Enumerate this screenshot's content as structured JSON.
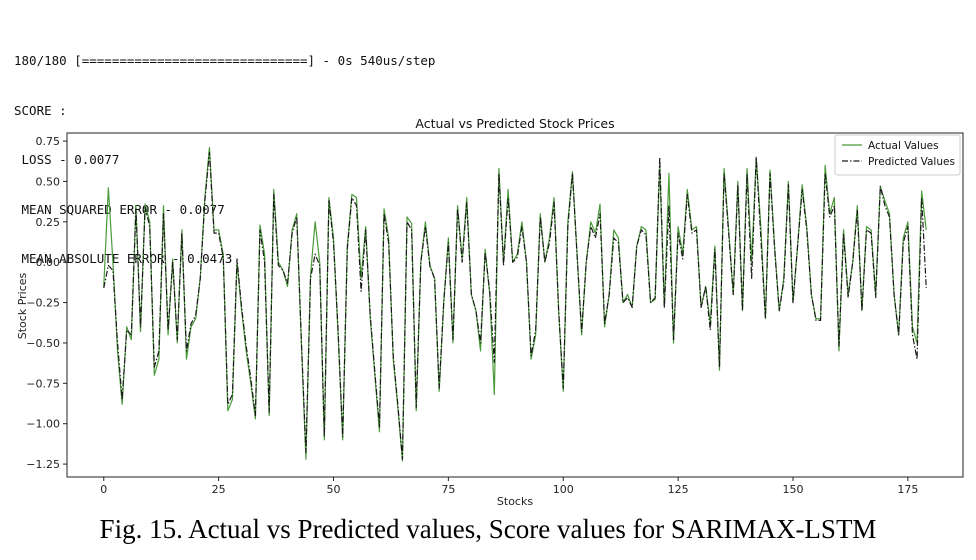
{
  "console": {
    "progress_line": "180/180 [==============================] - 0s 540us/step",
    "score_label": "SCORE :",
    "loss_line": " LOSS - 0.0077",
    "mse_line": " MEAN SQUARED ERROR - 0.0077",
    "mae_line": " MEAN ABSOLUTE ERROR - 0.0473"
  },
  "caption": "Fig. 15. Actual vs Predicted values, Score values for SARIMAX-LSTM",
  "chart_data": {
    "type": "line",
    "title": "Actual vs Predicted Stock Prices",
    "xlabel": "Stocks",
    "ylabel": "Stock Prices",
    "xlim": [
      -8,
      187
    ],
    "ylim": [
      -1.33,
      0.8
    ],
    "xticks": [
      0,
      25,
      50,
      75,
      100,
      125,
      150,
      175
    ],
    "xtick_labels": [
      "0",
      "25",
      "50",
      "75",
      "100",
      "125",
      "150",
      "175"
    ],
    "yticks": [
      0.75,
      0.5,
      0.25,
      0.0,
      -0.25,
      -0.5,
      -0.75,
      -1.0,
      -1.25
    ],
    "ytick_labels": [
      "0.75",
      "0.50",
      "0.25",
      "0.00",
      "−0.25",
      "−0.50",
      "−0.75",
      "−1.00",
      "−1.25"
    ],
    "grid": false,
    "legend_position": "top-right",
    "series": [
      {
        "name": "Actual Values",
        "color": "#4a9a3a",
        "style": "solid",
        "x": [
          0,
          1,
          2,
          3,
          4,
          5,
          6,
          7,
          8,
          9,
          10,
          11,
          12,
          13,
          14,
          15,
          16,
          17,
          18,
          19,
          20,
          21,
          22,
          23,
          24,
          25,
          26,
          27,
          28,
          29,
          30,
          31,
          32,
          33,
          34,
          35,
          36,
          37,
          38,
          39,
          40,
          41,
          42,
          43,
          44,
          45,
          46,
          47,
          48,
          49,
          50,
          51,
          52,
          53,
          54,
          55,
          56,
          57,
          58,
          59,
          60,
          61,
          62,
          63,
          64,
          65,
          66,
          67,
          68,
          69,
          70,
          71,
          72,
          73,
          74,
          75,
          76,
          77,
          78,
          79,
          80,
          81,
          82,
          83,
          84,
          85,
          86,
          87,
          88,
          89,
          90,
          91,
          92,
          93,
          94,
          95,
          96,
          97,
          98,
          99,
          100,
          101,
          102,
          103,
          104,
          105,
          106,
          107,
          108,
          109,
          110,
          111,
          112,
          113,
          114,
          115,
          116,
          117,
          118,
          119,
          120,
          121,
          122,
          123,
          124,
          125,
          126,
          127,
          128,
          129,
          130,
          131,
          132,
          133,
          134,
          135,
          136,
          137,
          138,
          139,
          140,
          141,
          142,
          143,
          144,
          145,
          146,
          147,
          148,
          149,
          150,
          151,
          152,
          153,
          154,
          155,
          156,
          157,
          158,
          159,
          160,
          161,
          162,
          163,
          164,
          165,
          166,
          167,
          168,
          169,
          170,
          171,
          172,
          173,
          174,
          175,
          176,
          177,
          178,
          179
        ],
        "values": [
          -0.15,
          0.46,
          0.0,
          -0.55,
          -0.88,
          -0.4,
          -0.48,
          0.35,
          -0.43,
          0.36,
          0.25,
          -0.7,
          -0.6,
          0.35,
          -0.45,
          0.02,
          -0.5,
          0.2,
          -0.6,
          -0.4,
          -0.35,
          -0.1,
          0.4,
          0.71,
          0.2,
          0.2,
          0.05,
          -0.92,
          -0.85,
          0.0,
          -0.3,
          -0.55,
          -0.75,
          -0.97,
          0.23,
          0.05,
          -0.95,
          0.45,
          0.0,
          -0.05,
          -0.15,
          0.2,
          0.3,
          -0.5,
          -1.22,
          -0.08,
          0.25,
          0.0,
          -1.1,
          0.4,
          0.15,
          -0.45,
          -1.1,
          0.1,
          0.42,
          0.4,
          -0.1,
          0.22,
          -0.35,
          -0.7,
          -1.05,
          0.33,
          0.15,
          -0.6,
          -0.9,
          -1.23,
          0.28,
          0.24,
          -0.92,
          0.0,
          0.25,
          -0.02,
          -0.1,
          -0.8,
          -0.25,
          0.15,
          -0.5,
          0.35,
          0.02,
          0.4,
          -0.2,
          -0.3,
          -0.55,
          0.08,
          -0.2,
          -0.82,
          0.58,
          0.0,
          0.45,
          0.0,
          0.05,
          0.25,
          0.0,
          -0.6,
          -0.45,
          0.3,
          0.0,
          0.15,
          0.4,
          -0.3,
          -0.8,
          0.25,
          0.56,
          0.05,
          -0.45,
          0.0,
          0.25,
          0.18,
          0.36,
          -0.4,
          -0.2,
          0.2,
          0.15,
          -0.25,
          -0.2,
          -0.28,
          0.1,
          0.22,
          0.2,
          -0.25,
          -0.23,
          0.6,
          -0.28,
          0.55,
          -0.5,
          0.22,
          0.05,
          0.45,
          0.2,
          0.22,
          -0.28,
          -0.15,
          -0.38,
          0.1,
          -0.67,
          0.58,
          0.2,
          -0.2,
          0.5,
          -0.3,
          0.58,
          0.0,
          0.65,
          0.22,
          -0.35,
          0.57,
          0.1,
          -0.3,
          -0.1,
          0.5,
          -0.25,
          0.1,
          0.48,
          0.22,
          -0.2,
          -0.35,
          -0.35,
          0.6,
          0.3,
          0.4,
          -0.55,
          0.2,
          -0.2,
          0.0,
          0.35,
          -0.3,
          0.22,
          0.2,
          -0.2,
          0.47,
          0.38,
          0.3,
          -0.2,
          -0.45,
          0.15,
          0.25,
          -0.4,
          -0.5,
          0.44,
          0.2
        ]
      },
      {
        "name": "Predicted Values",
        "color": "#1a1a1a",
        "style": "dashdot",
        "x": [
          0,
          1,
          2,
          3,
          4,
          5,
          6,
          7,
          8,
          9,
          10,
          11,
          12,
          13,
          14,
          15,
          16,
          17,
          18,
          19,
          20,
          21,
          22,
          23,
          24,
          25,
          26,
          27,
          28,
          29,
          30,
          31,
          32,
          33,
          34,
          35,
          36,
          37,
          38,
          39,
          40,
          41,
          42,
          43,
          44,
          45,
          46,
          47,
          48,
          49,
          50,
          51,
          52,
          53,
          54,
          55,
          56,
          57,
          58,
          59,
          60,
          61,
          62,
          63,
          64,
          65,
          66,
          67,
          68,
          69,
          70,
          71,
          72,
          73,
          74,
          75,
          76,
          77,
          78,
          79,
          80,
          81,
          82,
          83,
          84,
          85,
          86,
          87,
          88,
          89,
          90,
          91,
          92,
          93,
          94,
          95,
          96,
          97,
          98,
          99,
          100,
          101,
          102,
          103,
          104,
          105,
          106,
          107,
          108,
          109,
          110,
          111,
          112,
          113,
          114,
          115,
          116,
          117,
          118,
          119,
          120,
          121,
          122,
          123,
          124,
          125,
          126,
          127,
          128,
          129,
          130,
          131,
          132,
          133,
          134,
          135,
          136,
          137,
          138,
          139,
          140,
          141,
          142,
          143,
          144,
          145,
          146,
          147,
          148,
          149,
          150,
          151,
          152,
          153,
          154,
          155,
          156,
          157,
          158,
          159,
          160,
          161,
          162,
          163,
          164,
          165,
          166,
          167,
          168,
          169,
          170,
          171,
          172,
          173,
          174,
          175,
          176,
          177,
          178,
          179
        ],
        "values": [
          -0.16,
          -0.02,
          -0.05,
          -0.5,
          -0.85,
          -0.42,
          -0.45,
          0.33,
          -0.4,
          0.34,
          0.22,
          -0.65,
          -0.55,
          0.3,
          -0.42,
          0.0,
          -0.48,
          0.18,
          -0.55,
          -0.38,
          -0.33,
          -0.1,
          0.38,
          0.68,
          0.18,
          0.18,
          0.03,
          -0.88,
          -0.82,
          0.02,
          -0.28,
          -0.52,
          -0.72,
          -0.95,
          0.2,
          0.0,
          -0.93,
          0.42,
          -0.02,
          -0.05,
          -0.13,
          0.18,
          0.28,
          -0.48,
          -1.18,
          -0.1,
          0.05,
          -0.02,
          -1.08,
          0.38,
          0.12,
          -0.42,
          -1.08,
          0.08,
          0.4,
          0.35,
          -0.18,
          0.2,
          -0.33,
          -0.68,
          -1.02,
          0.3,
          0.12,
          -0.58,
          -0.88,
          -1.22,
          0.25,
          0.2,
          -0.9,
          0.0,
          0.22,
          -0.03,
          -0.1,
          -0.78,
          -0.24,
          0.12,
          -0.48,
          0.33,
          0.0,
          0.37,
          -0.2,
          -0.3,
          -0.5,
          0.06,
          -0.18,
          -0.62,
          0.55,
          -0.02,
          0.4,
          0.0,
          0.03,
          0.22,
          0.0,
          -0.58,
          -0.42,
          0.28,
          0.0,
          0.12,
          0.37,
          -0.3,
          -0.78,
          0.22,
          0.55,
          0.05,
          -0.43,
          0.0,
          0.22,
          0.15,
          0.3,
          -0.38,
          -0.2,
          0.15,
          0.12,
          -0.25,
          -0.22,
          -0.28,
          0.1,
          0.2,
          0.17,
          -0.25,
          -0.22,
          0.65,
          -0.28,
          0.35,
          -0.48,
          0.18,
          0.02,
          0.42,
          0.18,
          0.2,
          -0.28,
          -0.15,
          -0.42,
          0.08,
          -0.65,
          0.55,
          0.18,
          -0.2,
          0.48,
          -0.3,
          0.55,
          -0.1,
          0.65,
          0.15,
          -0.35,
          0.55,
          0.08,
          -0.3,
          -0.12,
          0.48,
          -0.25,
          0.1,
          0.45,
          0.2,
          -0.2,
          -0.36,
          -0.36,
          0.55,
          0.28,
          0.35,
          -0.52,
          0.18,
          -0.22,
          0.0,
          0.32,
          -0.3,
          0.2,
          0.18,
          -0.22,
          0.47,
          0.35,
          0.28,
          -0.2,
          -0.45,
          0.12,
          0.22,
          -0.45,
          -0.6,
          0.4,
          -0.16
        ]
      }
    ]
  }
}
